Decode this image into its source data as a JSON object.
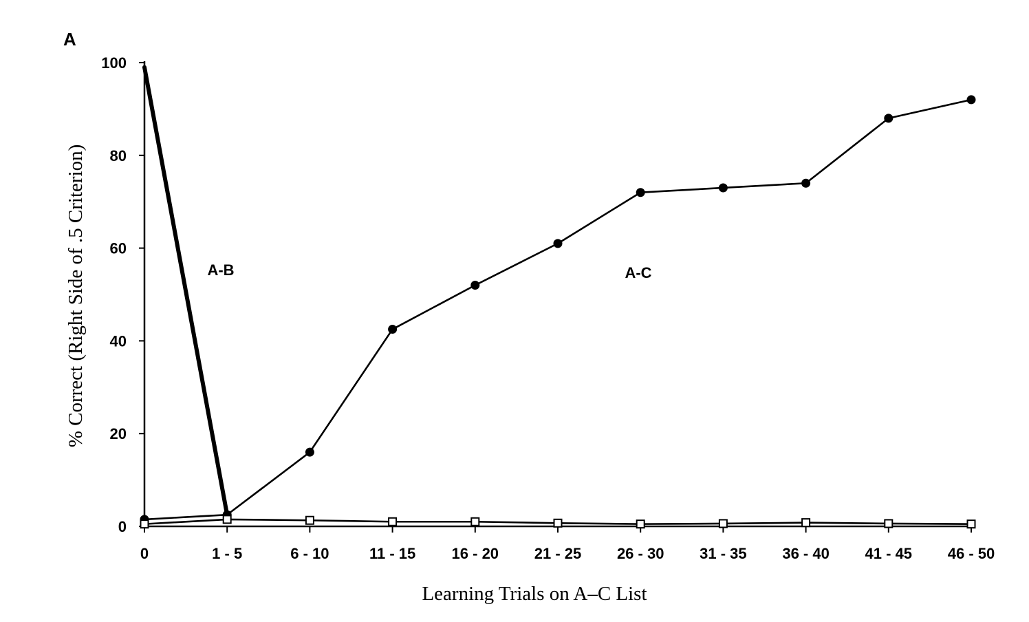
{
  "panel_label": "A",
  "chart_data": {
    "type": "line",
    "xlabel": "Learning Trials on A–C List",
    "ylabel": "% Correct (Right Side of .5 Criterion)",
    "ylim": [
      0,
      100
    ],
    "yticks": [
      0,
      20,
      40,
      60,
      80,
      100
    ],
    "categories": [
      "0",
      "1 - 5",
      "6 - 10",
      "11 - 15",
      "16 - 20",
      "21 - 25",
      "26 - 30",
      "31 - 35",
      "36 - 40",
      "41 - 45",
      "46 - 50"
    ],
    "series": [
      {
        "label": "A-B",
        "color": "#000000",
        "marker": "none",
        "weight": "thick",
        "values": [
          99,
          2.5,
          null,
          null,
          null,
          null,
          null,
          null,
          null,
          null,
          null
        ]
      },
      {
        "label": "A-C",
        "color": "#000000",
        "marker": "filled-circle",
        "weight": "normal",
        "values": [
          1.5,
          2.5,
          16,
          42.5,
          52,
          61,
          72,
          73,
          74,
          88,
          92
        ]
      },
      {
        "color": "#000000",
        "marker": "open-square",
        "weight": "normal",
        "values": [
          0.5,
          1.5,
          1.3,
          1.0,
          1.0,
          0.7,
          0.5,
          0.6,
          0.8,
          0.6,
          0.5
        ]
      }
    ],
    "grid": false,
    "legend": "none"
  }
}
